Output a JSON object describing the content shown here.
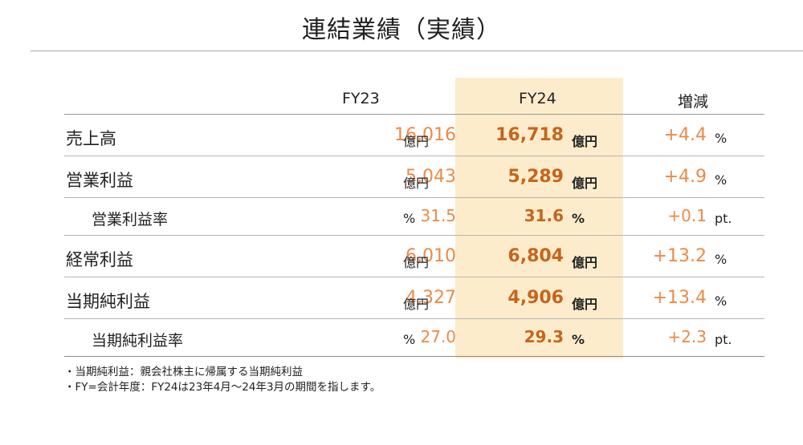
{
  "title": "連結業績（実績）",
  "columns": {
    "fy23": "FY23",
    "fy24": "FY24",
    "change": "増減"
  },
  "rows": [
    {
      "label": "売上高",
      "fy23": "16,016",
      "fy23_unit": "億円",
      "fy24": "16,718",
      "fy24_unit": "億円",
      "change": "+4.4",
      "change_unit": "%"
    },
    {
      "label": "営業利益",
      "fy23": "5,043",
      "fy23_unit": "億円",
      "fy24": "5,289",
      "fy24_unit": "億円",
      "change": "+4.9",
      "change_unit": "%"
    },
    {
      "label": "営業利益率",
      "fy23": "31.5",
      "fy23_unit": "%",
      "fy24": "31.6",
      "fy24_unit": "%",
      "change": "+0.1",
      "change_unit": "pt."
    },
    {
      "label": "経常利益",
      "fy23": "6,010",
      "fy23_unit": "億円",
      "fy24": "6,804",
      "fy24_unit": "億円",
      "change": "+13.2",
      "change_unit": "%"
    },
    {
      "label": "当期純利益",
      "fy23": "4,327",
      "fy23_unit": "億円",
      "fy24": "4,906",
      "fy24_unit": "億円",
      "change": "+13.4",
      "change_unit": "%"
    },
    {
      "label": "当期純利益率",
      "fy23": "27.0",
      "fy23_unit": "%",
      "fy24": "29.3",
      "fy24_unit": "%",
      "change": "+2.3",
      "change_unit": "pt."
    }
  ],
  "notes": [
    "・当期純利益：親会社株主に帰属する当期純利益",
    "・FY=会計年度：FY24は23年4月～24年3月の期間を指します。"
  ],
  "colors": {
    "fy23_value": "#ec8a46",
    "fy24_value": "#c6651c",
    "highlight": "#fdeccc"
  }
}
